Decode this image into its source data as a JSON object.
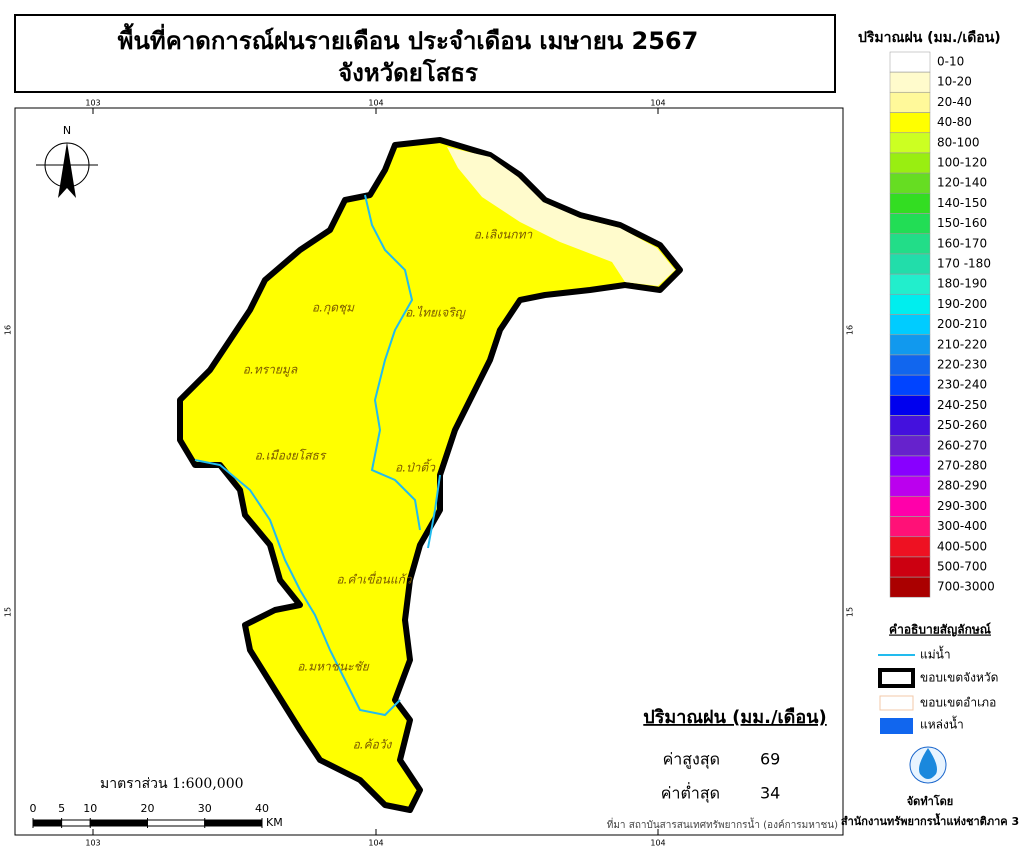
{
  "header": {
    "title": "พื้นที่คาดการณ์ฝนรายเดือน ประจำเดือน เมษายน 2567",
    "subtitle": "จังหวัดยโสธร"
  },
  "legend": {
    "title": "ปริมาณฝน (มม./เดือน)",
    "classes": [
      {
        "label": "0-10",
        "color": "#ffffff"
      },
      {
        "label": "10-20",
        "color": "#fffbcc"
      },
      {
        "label": "20-40",
        "color": "#fff99a"
      },
      {
        "label": "40-80",
        "color": "#ffff00"
      },
      {
        "label": "80-100",
        "color": "#ccff22"
      },
      {
        "label": "100-120",
        "color": "#99ee11"
      },
      {
        "label": "120-140",
        "color": "#66dd22"
      },
      {
        "label": "140-150",
        "color": "#33dd22"
      },
      {
        "label": "150-160",
        "color": "#22dd55"
      },
      {
        "label": "160-170",
        "color": "#22dd88"
      },
      {
        "label": "170 -180",
        "color": "#22ddaa"
      },
      {
        "label": "180-190",
        "color": "#22eecc"
      },
      {
        "label": "190-200",
        "color": "#00eeee"
      },
      {
        "label": "200-210",
        "color": "#00ccff"
      },
      {
        "label": "210-220",
        "color": "#1199ee"
      },
      {
        "label": "220-230",
        "color": "#1166ee"
      },
      {
        "label": "230-240",
        "color": "#0044ff"
      },
      {
        "label": "240-250",
        "color": "#0000ee"
      },
      {
        "label": "250-260",
        "color": "#4411dd"
      },
      {
        "label": "260-270",
        "color": "#6622cc"
      },
      {
        "label": "270-280",
        "color": "#8800ff"
      },
      {
        "label": "280-290",
        "color": "#bb00ee"
      },
      {
        "label": "290-300",
        "color": "#ff00aa"
      },
      {
        "label": "300-400",
        "color": "#ff1177"
      },
      {
        "label": "400-500",
        "color": "#ee1122"
      },
      {
        "label": "500-700",
        "color": "#cc0011"
      },
      {
        "label": "700-3000",
        "color": "#aa0000"
      }
    ]
  },
  "symbols": {
    "title": "คำอธิบายสัญลักษณ์",
    "items": [
      "แม่น้ำ",
      "ขอบเขตจังหวัด",
      "ขอบเขตอำเภอ",
      "แหล่งน้ำ"
    ]
  },
  "map": {
    "north": "N",
    "districts": [
      "อ.เลิงนกทา",
      "อ.กุดชุม",
      "อ.ไทยเจริญ",
      "อ.ทรายมูล",
      "อ.เมืองยโสธร",
      "อ.ป่าติ้ว",
      "อ.คำเขื่อนแก้ว",
      "อ.มหาชนะชัย",
      "อ.ค้อวัง"
    ],
    "grid": {
      "top": [
        "103",
        "104",
        "104"
      ],
      "bottom": [
        "103",
        "104",
        "104"
      ],
      "left": [
        "16",
        "15"
      ],
      "right": [
        "16",
        "15"
      ]
    }
  },
  "stats": {
    "title": "ปริมาณฝน (มม./เดือน)",
    "max_label": "ค่าสูงสุด",
    "max": 69,
    "min_label": "ค่าต่ำสุด",
    "min": 34
  },
  "scale": {
    "label": "มาตราส่วน 1:600,000",
    "ticks": [
      0,
      5,
      10,
      20,
      30,
      40
    ],
    "unit": "KM"
  },
  "source": "ที่มา  สถาบันสารสนเทศทรัพยากรน้ำ (องค์การมหาชน)",
  "credit": {
    "label": "จัดทำโดย",
    "org": "สำนักงานทรัพยากรน้ำแห่งชาติภาค 3"
  }
}
